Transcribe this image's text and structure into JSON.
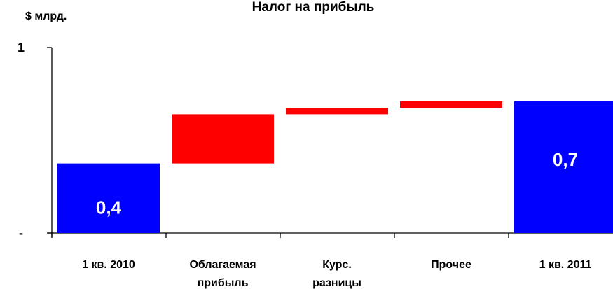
{
  "chart_data": {
    "type": "bar",
    "subtype": "waterfall",
    "title": "Налог на прибыль",
    "unit_label": "$ млрд.",
    "xlabel": "",
    "ylabel": "",
    "ylim": [
      0,
      1
    ],
    "y_tick_labels": [
      "-",
      "1"
    ],
    "grid": false,
    "legend": "none",
    "categories": [
      [
        "1 кв. 2010"
      ],
      [
        "Облагаемая",
        "прибыль"
      ],
      [
        "Курс.",
        "разницы"
      ],
      [
        "Прочее"
      ],
      [
        "1 кв. 2011"
      ]
    ],
    "bars": [
      {
        "kind": "total",
        "start": 0,
        "end": 0.375,
        "label": "0,4"
      },
      {
        "kind": "delta",
        "start": 0.375,
        "end": 0.64,
        "label": ""
      },
      {
        "kind": "delta",
        "start": 0.64,
        "end": 0.675,
        "label": ""
      },
      {
        "kind": "delta",
        "start": 0.675,
        "end": 0.71,
        "label": ""
      },
      {
        "kind": "total",
        "start": 0,
        "end": 0.71,
        "label": "0,7"
      }
    ],
    "colors": {
      "total": "#0000ff",
      "delta": "#ff0000",
      "axis": "#000000"
    }
  }
}
